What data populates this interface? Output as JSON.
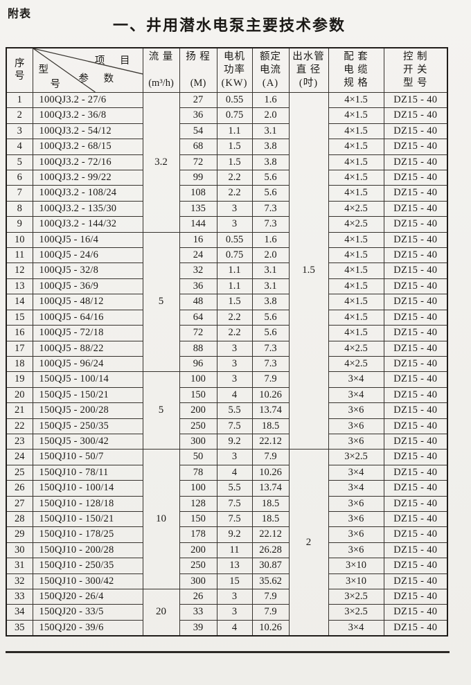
{
  "page": {
    "tag": "附表",
    "title": "一、井用潜水电泵主要技术参数"
  },
  "table": {
    "headers": {
      "serial": "序\n号",
      "corner_item": "项 目",
      "corner_param": "参 数",
      "corner_model_top": "型",
      "corner_model_bottom": "号",
      "flow_label": "流 量",
      "flow_unit": "(m³/h)",
      "head_label": "扬 程",
      "head_unit": "(M)",
      "power_label": "电机\n功率\n(KW)",
      "current_label": "额定\n电流\n(A)",
      "diameter_label": "出水管\n直 径\n(吋)",
      "cable_label": "配  套\n电  缆\n规  格",
      "switch_label": "控  制\n开  关\n型  号"
    },
    "flow_groups": [
      {
        "row": 1,
        "span": 9,
        "value": "3.2"
      },
      {
        "row": 10,
        "span": 9,
        "value": "5"
      },
      {
        "row": 19,
        "span": 5,
        "value": "5"
      },
      {
        "row": 24,
        "span": 9,
        "value": "10"
      },
      {
        "row": 33,
        "span": 3,
        "value": "20"
      }
    ],
    "diameter_groups": [
      {
        "row": 1,
        "span": 23,
        "value": "1.5"
      },
      {
        "row": 24,
        "span": 12,
        "value": "2"
      }
    ],
    "rows": [
      {
        "no": "1",
        "model": "100QJ3.2 - 27/6",
        "head": "27",
        "power": "0.55",
        "current": "1.6",
        "cable": "4×1.5",
        "switch": "DZ15 - 40"
      },
      {
        "no": "2",
        "model": "100QJ3.2 - 36/8",
        "head": "36",
        "power": "0.75",
        "current": "2.0",
        "cable": "4×1.5",
        "switch": "DZ15 - 40"
      },
      {
        "no": "3",
        "model": "100QJ3.2 - 54/12",
        "head": "54",
        "power": "1.1",
        "current": "3.1",
        "cable": "4×1.5",
        "switch": "DZ15 - 40"
      },
      {
        "no": "4",
        "model": "100QJ3.2 - 68/15",
        "head": "68",
        "power": "1.5",
        "current": "3.8",
        "cable": "4×1.5",
        "switch": "DZ15 - 40"
      },
      {
        "no": "5",
        "model": "100QJ3.2 - 72/16",
        "head": "72",
        "power": "1.5",
        "current": "3.8",
        "cable": "4×1.5",
        "switch": "DZ15 - 40"
      },
      {
        "no": "6",
        "model": "100QJ3.2 - 99/22",
        "head": "99",
        "power": "2.2",
        "current": "5.6",
        "cable": "4×1.5",
        "switch": "DZ15 - 40"
      },
      {
        "no": "7",
        "model": "100QJ3.2 - 108/24",
        "head": "108",
        "power": "2.2",
        "current": "5.6",
        "cable": "4×1.5",
        "switch": "DZ15 - 40"
      },
      {
        "no": "8",
        "model": "100QJ3.2 - 135/30",
        "head": "135",
        "power": "3",
        "current": "7.3",
        "cable": "4×2.5",
        "switch": "DZ15 - 40"
      },
      {
        "no": "9",
        "model": "100QJ3.2 - 144/32",
        "head": "144",
        "power": "3",
        "current": "7.3",
        "cable": "4×2.5",
        "switch": "DZ15 - 40"
      },
      {
        "no": "10",
        "model": "100QJ5 - 16/4",
        "head": "16",
        "power": "0.55",
        "current": "1.6",
        "cable": "4×1.5",
        "switch": "DZ15 - 40"
      },
      {
        "no": "11",
        "model": "100QJ5 - 24/6",
        "head": "24",
        "power": "0.75",
        "current": "2.0",
        "cable": "4×1.5",
        "switch": "DZ15 - 40"
      },
      {
        "no": "12",
        "model": "100QJ5 - 32/8",
        "head": "32",
        "power": "1.1",
        "current": "3.1",
        "cable": "4×1.5",
        "switch": "DZ15 - 40"
      },
      {
        "no": "13",
        "model": "100QJ5 - 36/9",
        "head": "36",
        "power": "1.1",
        "current": "3.1",
        "cable": "4×1.5",
        "switch": "DZ15 - 40"
      },
      {
        "no": "14",
        "model": "100QJ5 - 48/12",
        "head": "48",
        "power": "1.5",
        "current": "3.8",
        "cable": "4×1.5",
        "switch": "DZ15 - 40"
      },
      {
        "no": "15",
        "model": "100QJ5 - 64/16",
        "head": "64",
        "power": "2.2",
        "current": "5.6",
        "cable": "4×1.5",
        "switch": "DZ15 - 40"
      },
      {
        "no": "16",
        "model": "100QJ5 - 72/18",
        "head": "72",
        "power": "2.2",
        "current": "5.6",
        "cable": "4×1.5",
        "switch": "DZ15 - 40"
      },
      {
        "no": "17",
        "model": "100QJ5 - 88/22",
        "head": "88",
        "power": "3",
        "current": "7.3",
        "cable": "4×2.5",
        "switch": "DZ15 - 40"
      },
      {
        "no": "18",
        "model": "100QJ5 - 96/24",
        "head": "96",
        "power": "3",
        "current": "7.3",
        "cable": "4×2.5",
        "switch": "DZ15 - 40"
      },
      {
        "no": "19",
        "model": "150QJ5 - 100/14",
        "head": "100",
        "power": "3",
        "current": "7.9",
        "cable": "3×4",
        "switch": "DZ15 - 40"
      },
      {
        "no": "20",
        "model": "150QJ5 - 150/21",
        "head": "150",
        "power": "4",
        "current": "10.26",
        "cable": "3×4",
        "switch": "DZ15 - 40"
      },
      {
        "no": "21",
        "model": "150QJ5 - 200/28",
        "head": "200",
        "power": "5.5",
        "current": "13.74",
        "cable": "3×6",
        "switch": "DZ15 - 40"
      },
      {
        "no": "22",
        "model": "150QJ5 - 250/35",
        "head": "250",
        "power": "7.5",
        "current": "18.5",
        "cable": "3×6",
        "switch": "DZ15 - 40"
      },
      {
        "no": "23",
        "model": "150QJ5 - 300/42",
        "head": "300",
        "power": "9.2",
        "current": "22.12",
        "cable": "3×6",
        "switch": "DZ15 - 40"
      },
      {
        "no": "24",
        "model": "150QJ10 - 50/7",
        "head": "50",
        "power": "3",
        "current": "7.9",
        "cable": "3×2.5",
        "switch": "DZ15 - 40"
      },
      {
        "no": "25",
        "model": "150QJ10 - 78/11",
        "head": "78",
        "power": "4",
        "current": "10.26",
        "cable": "3×4",
        "switch": "DZ15 - 40"
      },
      {
        "no": "26",
        "model": "150QJ10 - 100/14",
        "head": "100",
        "power": "5.5",
        "current": "13.74",
        "cable": "3×4",
        "switch": "DZ15 - 40"
      },
      {
        "no": "27",
        "model": "150QJ10 - 128/18",
        "head": "128",
        "power": "7.5",
        "current": "18.5",
        "cable": "3×6",
        "switch": "DZ15 - 40"
      },
      {
        "no": "28",
        "model": "150QJ10 - 150/21",
        "head": "150",
        "power": "7.5",
        "current": "18.5",
        "cable": "3×6",
        "switch": "DZ15 - 40"
      },
      {
        "no": "29",
        "model": "150QJ10 - 178/25",
        "head": "178",
        "power": "9.2",
        "current": "22.12",
        "cable": "3×6",
        "switch": "DZ15 - 40"
      },
      {
        "no": "30",
        "model": "150QJ10 - 200/28",
        "head": "200",
        "power": "11",
        "current": "26.28",
        "cable": "3×6",
        "switch": "DZ15 - 40"
      },
      {
        "no": "31",
        "model": "150QJ10 - 250/35",
        "head": "250",
        "power": "13",
        "current": "30.87",
        "cable": "3×10",
        "switch": "DZ15 - 40"
      },
      {
        "no": "32",
        "model": "150QJ10 - 300/42",
        "head": "300",
        "power": "15",
        "current": "35.62",
        "cable": "3×10",
        "switch": "DZ15 - 40"
      },
      {
        "no": "33",
        "model": "150QJ20 - 26/4",
        "head": "26",
        "power": "3",
        "current": "7.9",
        "cable": "3×2.5",
        "switch": "DZ15 - 40"
      },
      {
        "no": "34",
        "model": "150QJ20 - 33/5",
        "head": "33",
        "power": "3",
        "current": "7.9",
        "cable": "3×2.5",
        "switch": "DZ15 - 40"
      },
      {
        "no": "35",
        "model": "150QJ20 - 39/6",
        "head": "39",
        "power": "4",
        "current": "10.26",
        "cable": "3×4",
        "switch": "DZ15 - 40"
      }
    ]
  }
}
